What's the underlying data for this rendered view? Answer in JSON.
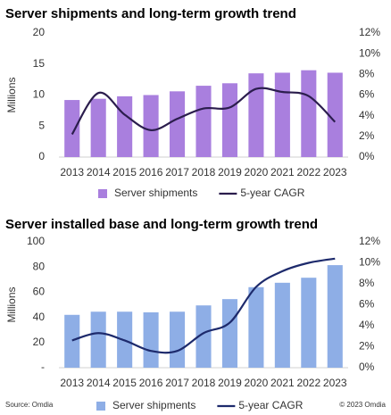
{
  "chart_data": [
    {
      "type": "combo",
      "title": "Server shipments and long-term growth trend",
      "ylabel": "Millions",
      "legend": "bottom",
      "categories": [
        "2013",
        "2014",
        "2015",
        "2016",
        "2017",
        "2018",
        "2019",
        "2020",
        "2021",
        "2022",
        "2023"
      ],
      "series": [
        {
          "name": "Server shipments",
          "type": "bar",
          "color": "#a97fde",
          "values": [
            9.2,
            9.4,
            9.8,
            10.0,
            10.6,
            11.5,
            11.9,
            13.5,
            13.6,
            14.0,
            13.6
          ]
        },
        {
          "name": "5-year CAGR",
          "type": "line",
          "axis": "y2",
          "color": "#2b1d4d",
          "values": [
            2.2,
            6.2,
            4.1,
            2.6,
            3.7,
            4.7,
            4.8,
            6.6,
            6.3,
            5.9,
            3.4
          ]
        }
      ],
      "ylim": [
        0,
        20
      ],
      "yticks": [
        0,
        5,
        10,
        15,
        20
      ],
      "y2lim": [
        0,
        12
      ],
      "y2ticks": [
        {
          "value": 0,
          "label": "0%"
        },
        {
          "value": 2,
          "label": "2%"
        },
        {
          "value": 4,
          "label": "4%"
        },
        {
          "value": 6,
          "label": "6%"
        },
        {
          "value": 8,
          "label": "8%"
        },
        {
          "value": 10,
          "label": "10%"
        },
        {
          "value": 12,
          "label": "12%"
        }
      ]
    },
    {
      "type": "combo",
      "title": "Server installed base and long-term growth trend",
      "ylabel": "Millions",
      "legend": "bottom",
      "categories": [
        "2013",
        "2014",
        "2015",
        "2016",
        "2017",
        "2018",
        "2019",
        "2020",
        "2021",
        "2022",
        "2023"
      ],
      "series": [
        {
          "name": "Server shipments",
          "type": "bar",
          "color": "#8eaee6",
          "values": [
            42,
            44.5,
            44.5,
            44,
            44.5,
            49.5,
            54.5,
            64,
            67.5,
            71.5,
            81.5
          ]
        },
        {
          "name": "5-year CAGR",
          "type": "line",
          "axis": "y2",
          "color": "#1d2a6c",
          "values": [
            2.6,
            3.3,
            2.6,
            1.6,
            1.6,
            3.3,
            4.3,
            7.7,
            9.2,
            10.0,
            10.4
          ]
        }
      ],
      "ylim": [
        0,
        100
      ],
      "yticks": [
        {
          "value": 0,
          "label": "-"
        },
        20,
        40,
        60,
        80,
        100
      ],
      "y2lim": [
        0,
        12
      ],
      "y2ticks": [
        {
          "value": 0,
          "label": "0%"
        },
        {
          "value": 2,
          "label": "2%"
        },
        {
          "value": 4,
          "label": "4%"
        },
        {
          "value": 6,
          "label": "6%"
        },
        {
          "value": 8,
          "label": "8%"
        },
        {
          "value": 10,
          "label": "10%"
        },
        {
          "value": 12,
          "label": "12%"
        }
      ]
    }
  ],
  "footer": {
    "source": "Source: Omdia",
    "copyright": "© 2023 Omdia"
  }
}
